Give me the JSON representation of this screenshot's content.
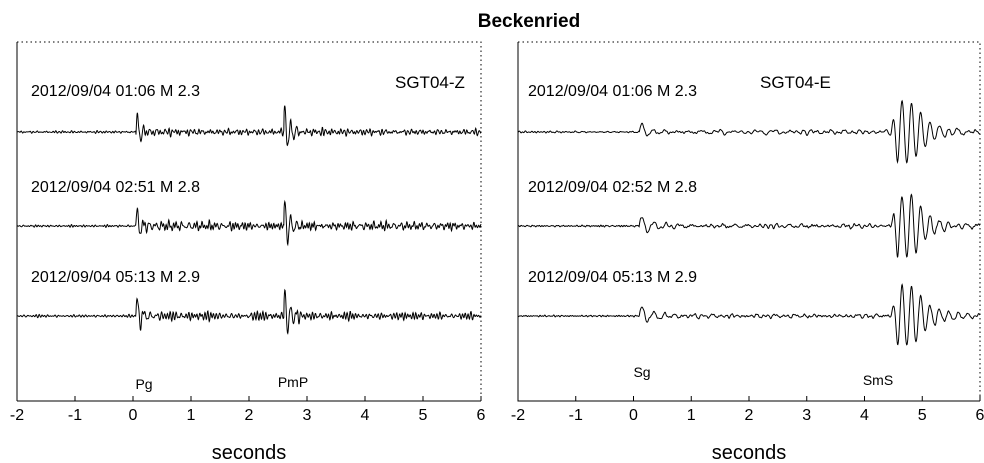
{
  "figure": {
    "title": "Beckenried"
  },
  "chart_data": [
    {
      "type": "line",
      "station": "SGT04-Z",
      "xlabel": "seconds",
      "xlim": [
        -2,
        6
      ],
      "xticks": [
        "-2",
        "-1",
        "0",
        "1",
        "2",
        "3",
        "4",
        "5",
        "6"
      ],
      "events": [
        {
          "label": "2012/09/04 01:06  M 2.3",
          "first_arrival_s": 0.05,
          "second_arrival_s": 2.6
        },
        {
          "label": "2012/09/04 02:51  M 2.8",
          "first_arrival_s": 0.05,
          "second_arrival_s": 2.6
        },
        {
          "label": "2012/09/04 05:13  M 2.9",
          "first_arrival_s": 0.05,
          "second_arrival_s": 2.6
        }
      ],
      "phases": [
        {
          "label": "Pg",
          "time_s": 0.1
        },
        {
          "label": "PmP",
          "time_s": 2.65
        }
      ]
    },
    {
      "type": "line",
      "station": "SGT04-E",
      "xlabel": "seconds",
      "xlim": [
        -2,
        6
      ],
      "xticks": [
        "-2",
        "-1",
        "0",
        "1",
        "2",
        "3",
        "4",
        "5",
        "6"
      ],
      "events": [
        {
          "label": "2012/09/04 01:06  M 2.3",
          "first_arrival_s": 0.1,
          "second_arrival_s": 4.45
        },
        {
          "label": "2012/09/04 02:52  M 2.8",
          "first_arrival_s": 0.1,
          "second_arrival_s": 4.45
        },
        {
          "label": "2012/09/04 05:13  M 2.9",
          "first_arrival_s": 0.1,
          "second_arrival_s": 4.45
        }
      ],
      "phases": [
        {
          "label": "Sg",
          "time_s": 0.1
        },
        {
          "label": "SmS",
          "time_s": 4.75
        }
      ]
    }
  ]
}
